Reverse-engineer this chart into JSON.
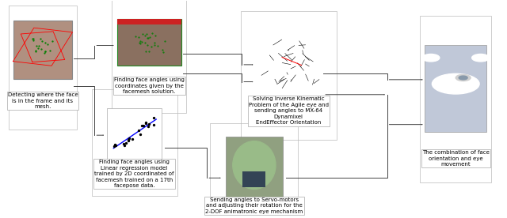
{
  "bg_color": "#ffffff",
  "label_fontsize": 5.0,
  "arrow_color": "#444444",
  "labels": {
    "node1": "Detecting where the face\nis in the frame and its\nmesh.",
    "node2": "Finding face angles using\ncoordinates given by the\nfacemesh solution.",
    "node3": "Finding face angles using\nLinear regression model\ntrained by 2D coordinated of\nfacemesh trained on a 17th\nfacepose data.",
    "node4": "Solving Inverse Kinematic\nProblem of the Agile eye and\nsending angles to MX-64\nDynamixel\nEndEffector Orientation",
    "node5": "Sending angles to Servo-motors\nand adjusting their rotation for the\n2-DOF animatronic eye mechanism",
    "node6": "The combination of face\norientation and eye\nmovement"
  }
}
